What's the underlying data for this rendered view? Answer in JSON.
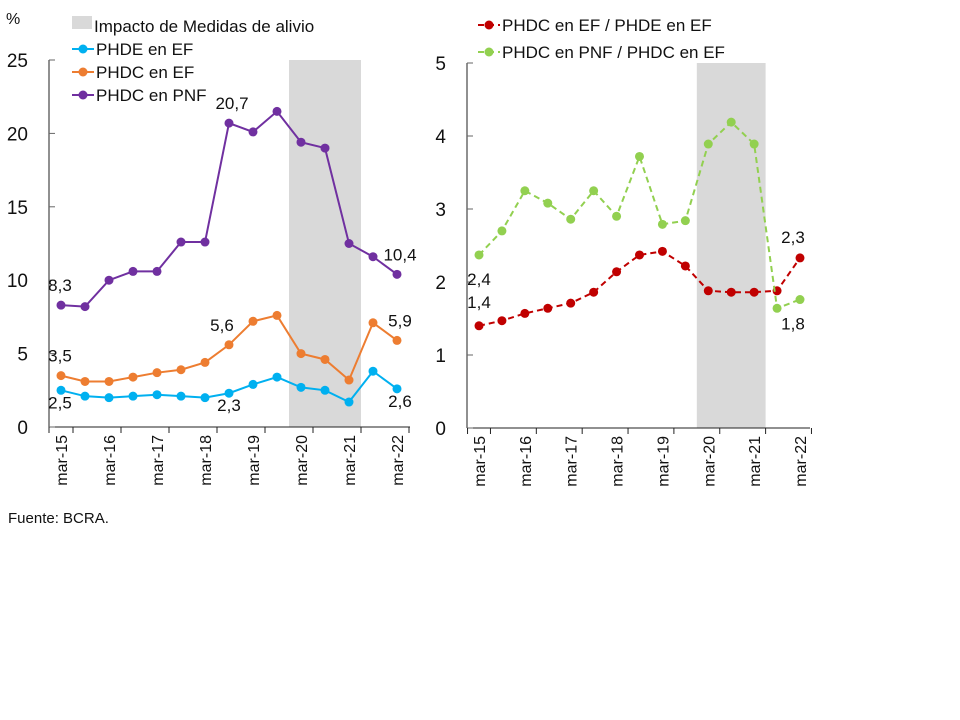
{
  "source": "Fuente: BCRA.",
  "chart_data": [
    {
      "type": "line",
      "yunit": "%",
      "ylim": [
        0,
        25
      ],
      "yticks": [
        0,
        5,
        10,
        15,
        20,
        25
      ],
      "categories": [
        "mar-15",
        "sep-15",
        "mar-16",
        "sep-16",
        "mar-17",
        "sep-17",
        "mar-18",
        "sep-18",
        "mar-19",
        "sep-19",
        "mar-20",
        "sep-20",
        "mar-21",
        "sep-21",
        "mar-22"
      ],
      "xtick_labels": [
        "mar-15",
        "mar-16",
        "mar-17",
        "mar-18",
        "mar-19",
        "mar-20",
        "mar-21",
        "mar-22"
      ],
      "shaded_region": {
        "label": "Impacto de Medidas de alivio",
        "from_index": 9.5,
        "to_index": 12.5,
        "color": "#d9d9d9"
      },
      "series": [
        {
          "name": "PHDE en EF",
          "color": "#00b0f0",
          "dashed": false,
          "values": [
            2.5,
            2.1,
            2.0,
            2.1,
            2.2,
            2.1,
            2.0,
            2.3,
            2.9,
            3.4,
            2.7,
            2.5,
            1.7,
            3.8,
            2.6
          ]
        },
        {
          "name": "PHDC en EF",
          "color": "#ed7d31",
          "dashed": false,
          "values": [
            3.5,
            3.1,
            3.1,
            3.4,
            3.7,
            3.9,
            4.4,
            5.6,
            7.2,
            7.6,
            5.0,
            4.6,
            3.2,
            7.1,
            5.9
          ]
        },
        {
          "name": "PHDC en PNF",
          "color": "#7030a0",
          "dashed": false,
          "values": [
            8.3,
            8.2,
            10.0,
            10.6,
            10.6,
            12.6,
            12.6,
            20.7,
            20.1,
            21.5,
            19.4,
            19.0,
            12.5,
            11.6,
            10.4
          ]
        }
      ],
      "data_labels": [
        {
          "series": 2,
          "index": 0,
          "text": "8,3"
        },
        {
          "series": 2,
          "index": 7,
          "text": "20,7"
        },
        {
          "series": 2,
          "index": 14,
          "text": "10,4"
        },
        {
          "series": 1,
          "index": 0,
          "text": "3,5"
        },
        {
          "series": 1,
          "index": 7,
          "text": "5,6"
        },
        {
          "series": 1,
          "index": 14,
          "text": "5,9"
        },
        {
          "series": 0,
          "index": 0,
          "text": "2,5"
        },
        {
          "series": 0,
          "index": 7,
          "text": "2,3"
        },
        {
          "series": 0,
          "index": 14,
          "text": "2,6"
        }
      ],
      "legend": "top-left"
    },
    {
      "type": "line",
      "ylim": [
        0,
        5
      ],
      "yticks": [
        0,
        1,
        2,
        3,
        4,
        5
      ],
      "categories": [
        "mar-15",
        "sep-15",
        "mar-16",
        "sep-16",
        "mar-17",
        "sep-17",
        "mar-18",
        "sep-18",
        "mar-19",
        "sep-19",
        "mar-20",
        "sep-20",
        "mar-21",
        "sep-21",
        "mar-22"
      ],
      "xtick_labels": [
        "mar-15",
        "mar-16",
        "mar-17",
        "mar-18",
        "mar-19",
        "mar-20",
        "mar-21",
        "mar-22"
      ],
      "shaded_region": {
        "from_index": 9.5,
        "to_index": 12.5,
        "color": "#d9d9d9"
      },
      "series": [
        {
          "name": "PHDC en EF / PHDE en EF",
          "color": "#c00000",
          "dashed": true,
          "values": [
            1.4,
            1.47,
            1.57,
            1.64,
            1.71,
            1.86,
            2.14,
            2.37,
            2.42,
            2.22,
            1.88,
            1.86,
            1.86,
            1.88,
            2.33
          ]
        },
        {
          "name": "PHDC en PNF / PHDC en EF",
          "color": "#92d050",
          "dashed": true,
          "values": [
            2.37,
            2.7,
            3.25,
            3.08,
            2.86,
            3.25,
            2.9,
            3.72,
            2.79,
            2.84,
            3.89,
            4.19,
            3.89,
            1.64,
            1.76
          ]
        }
      ],
      "data_labels": [
        {
          "series": 1,
          "index": 0,
          "text": "2,4"
        },
        {
          "series": 0,
          "index": 0,
          "text": "1,4"
        },
        {
          "series": 0,
          "index": 14,
          "text": "2,3"
        },
        {
          "series": 1,
          "index": 14,
          "text": "1,8"
        }
      ],
      "legend": "top"
    }
  ]
}
